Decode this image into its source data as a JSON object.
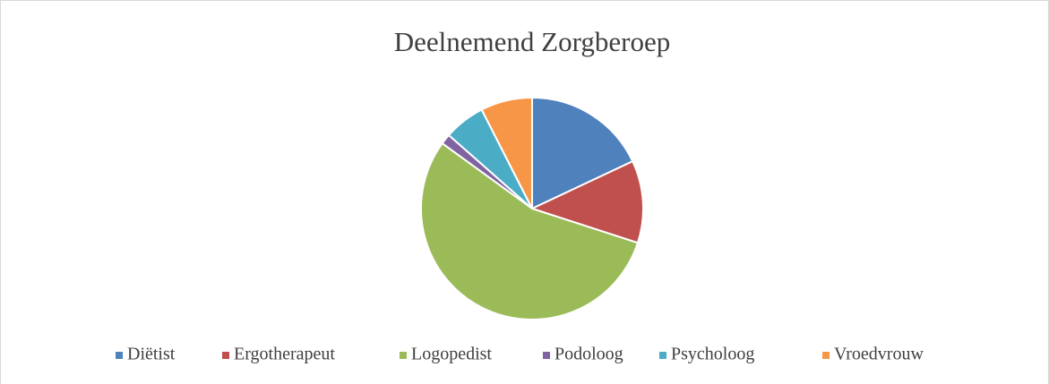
{
  "chart_data": {
    "type": "pie",
    "title": "Deelnemend Zorgberoep",
    "categories": [
      "Diëtist",
      "Ergotherapeut",
      "Logopedist",
      "Podoloog",
      "Psycholoog",
      "Vroedvrouw"
    ],
    "values": [
      18,
      12,
      55,
      1.5,
      6,
      7.5
    ],
    "colors": [
      "#4f81bd",
      "#c0504d",
      "#9bbb59",
      "#8064a2",
      "#4bacc6",
      "#f79646"
    ],
    "legend": "bottom"
  }
}
